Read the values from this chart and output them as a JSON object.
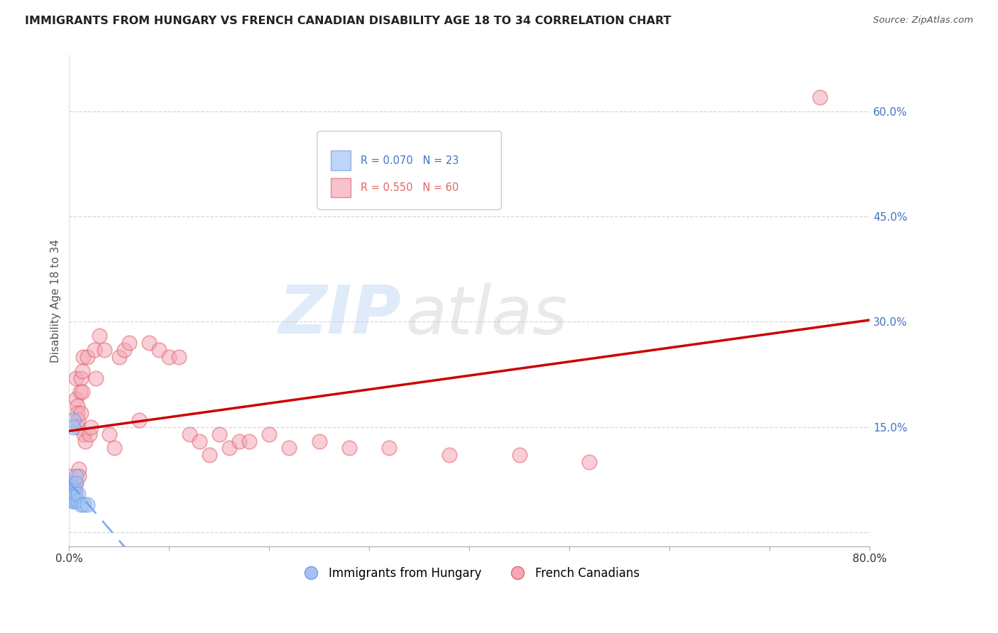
{
  "title": "IMMIGRANTS FROM HUNGARY VS FRENCH CANADIAN DISABILITY AGE 18 TO 34 CORRELATION CHART",
  "source": "Source: ZipAtlas.com",
  "ylabel": "Disability Age 18 to 34",
  "xlim": [
    0.0,
    0.8
  ],
  "ylim": [
    -0.02,
    0.68
  ],
  "right_yticks": [
    0.0,
    0.15,
    0.3,
    0.45,
    0.6
  ],
  "right_yticklabels": [
    "",
    "15.0%",
    "30.0%",
    "45.0%",
    "60.0%"
  ],
  "xtick_positions": [
    0.0,
    0.1,
    0.2,
    0.3,
    0.4,
    0.5,
    0.6,
    0.7,
    0.8
  ],
  "xtick_labels": [
    "0.0%",
    "",
    "",
    "",
    "",
    "",
    "",
    "",
    "80.0%"
  ],
  "blue_R": 0.07,
  "blue_N": 23,
  "pink_R": 0.55,
  "pink_N": 60,
  "blue_color": "#a4c2f4",
  "pink_color": "#f4a7b9",
  "blue_edge_color": "#6d9eeb",
  "pink_edge_color": "#e06666",
  "blue_trend_color": "#6d9eeb",
  "pink_trend_color": "#cc0000",
  "legend_label_blue": "Immigrants from Hungary",
  "legend_label_pink": "French Canadians",
  "blue_x": [
    0.001,
    0.001,
    0.001,
    0.002,
    0.002,
    0.002,
    0.002,
    0.003,
    0.003,
    0.003,
    0.004,
    0.004,
    0.005,
    0.005,
    0.005,
    0.006,
    0.007,
    0.007,
    0.008,
    0.009,
    0.012,
    0.015,
    0.018
  ],
  "blue_y": [
    0.07,
    0.06,
    0.055,
    0.065,
    0.06,
    0.055,
    0.05,
    0.05,
    0.048,
    0.045,
    0.16,
    0.15,
    0.055,
    0.05,
    0.045,
    0.055,
    0.08,
    0.07,
    0.045,
    0.055,
    0.04,
    0.04,
    0.04
  ],
  "pink_x": [
    0.001,
    0.002,
    0.002,
    0.003,
    0.003,
    0.004,
    0.004,
    0.005,
    0.005,
    0.006,
    0.006,
    0.007,
    0.007,
    0.008,
    0.008,
    0.009,
    0.009,
    0.01,
    0.01,
    0.011,
    0.012,
    0.012,
    0.013,
    0.013,
    0.014,
    0.015,
    0.016,
    0.018,
    0.02,
    0.022,
    0.025,
    0.027,
    0.03,
    0.035,
    0.04,
    0.045,
    0.05,
    0.055,
    0.06,
    0.07,
    0.08,
    0.09,
    0.1,
    0.11,
    0.12,
    0.13,
    0.14,
    0.15,
    0.16,
    0.17,
    0.18,
    0.2,
    0.22,
    0.25,
    0.28,
    0.32,
    0.38,
    0.45,
    0.52,
    0.75
  ],
  "pink_y": [
    0.07,
    0.08,
    0.065,
    0.07,
    0.06,
    0.055,
    0.06,
    0.065,
    0.055,
    0.06,
    0.07,
    0.22,
    0.19,
    0.18,
    0.17,
    0.15,
    0.16,
    0.09,
    0.08,
    0.2,
    0.22,
    0.17,
    0.23,
    0.2,
    0.25,
    0.14,
    0.13,
    0.25,
    0.14,
    0.15,
    0.26,
    0.22,
    0.28,
    0.26,
    0.14,
    0.12,
    0.25,
    0.26,
    0.27,
    0.16,
    0.27,
    0.26,
    0.25,
    0.25,
    0.14,
    0.13,
    0.11,
    0.14,
    0.12,
    0.13,
    0.13,
    0.14,
    0.12,
    0.13,
    0.12,
    0.12,
    0.11,
    0.11,
    0.1,
    0.62
  ],
  "watermark_zip": "ZIP",
  "watermark_atlas": "atlas",
  "grid_color": "#cccccc"
}
